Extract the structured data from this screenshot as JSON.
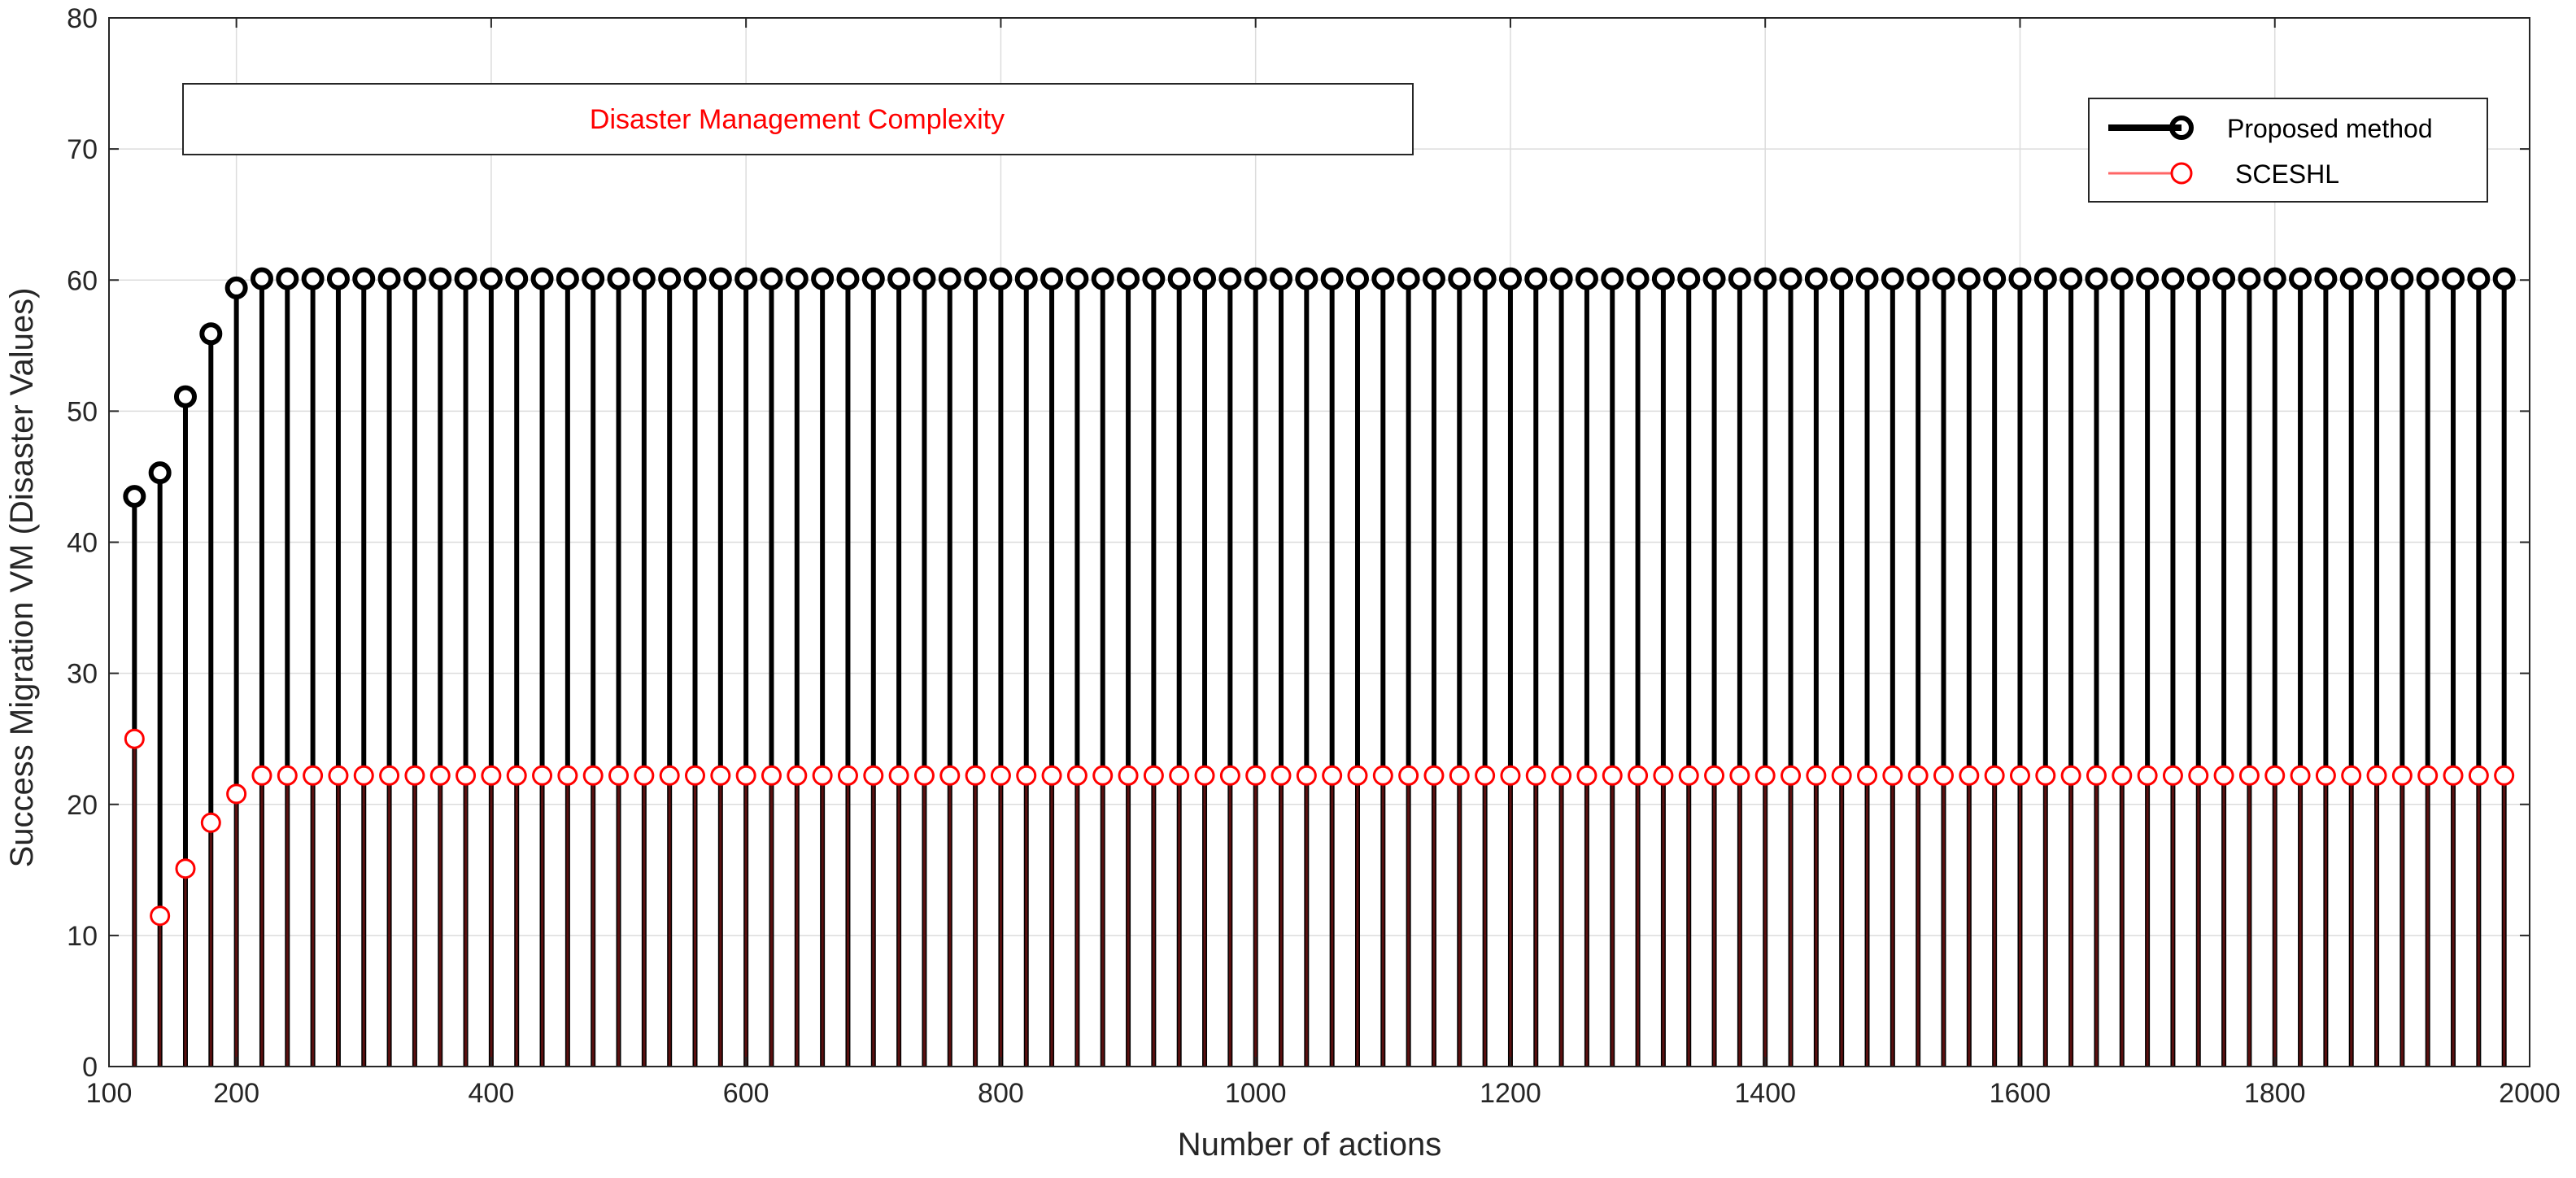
{
  "chart_data": {
    "type": "stem",
    "xlabel": "Number of actions",
    "ylabel": "Success Migration VM (Disaster Values)",
    "xlim": [
      100,
      2000
    ],
    "ylim": [
      0,
      80
    ],
    "xticks": [
      "100",
      "200",
      "400",
      "600",
      "800",
      "1000",
      "1200",
      "1400",
      "1600",
      "1800",
      "2000"
    ],
    "yticks": [
      "0",
      "10",
      "20",
      "30",
      "40",
      "50",
      "60",
      "70",
      "80"
    ],
    "grid": true,
    "legend_position": "top-right",
    "annotation": "Disaster Management Complexity",
    "x_start": 120,
    "x_step": 20,
    "x_end": 1980,
    "series": [
      {
        "name": "Proposed method",
        "color": "#000000",
        "initial_values": [
          43.5,
          45.3,
          51.1,
          55.9,
          59.4
        ],
        "plateau": 60.1
      },
      {
        "name": "SCESHL",
        "color": "#ff0000",
        "stem_color": "#5a1010",
        "initial_values": [
          25.0,
          11.5,
          15.1,
          18.6,
          20.8
        ],
        "plateau": 22.2
      }
    ]
  }
}
